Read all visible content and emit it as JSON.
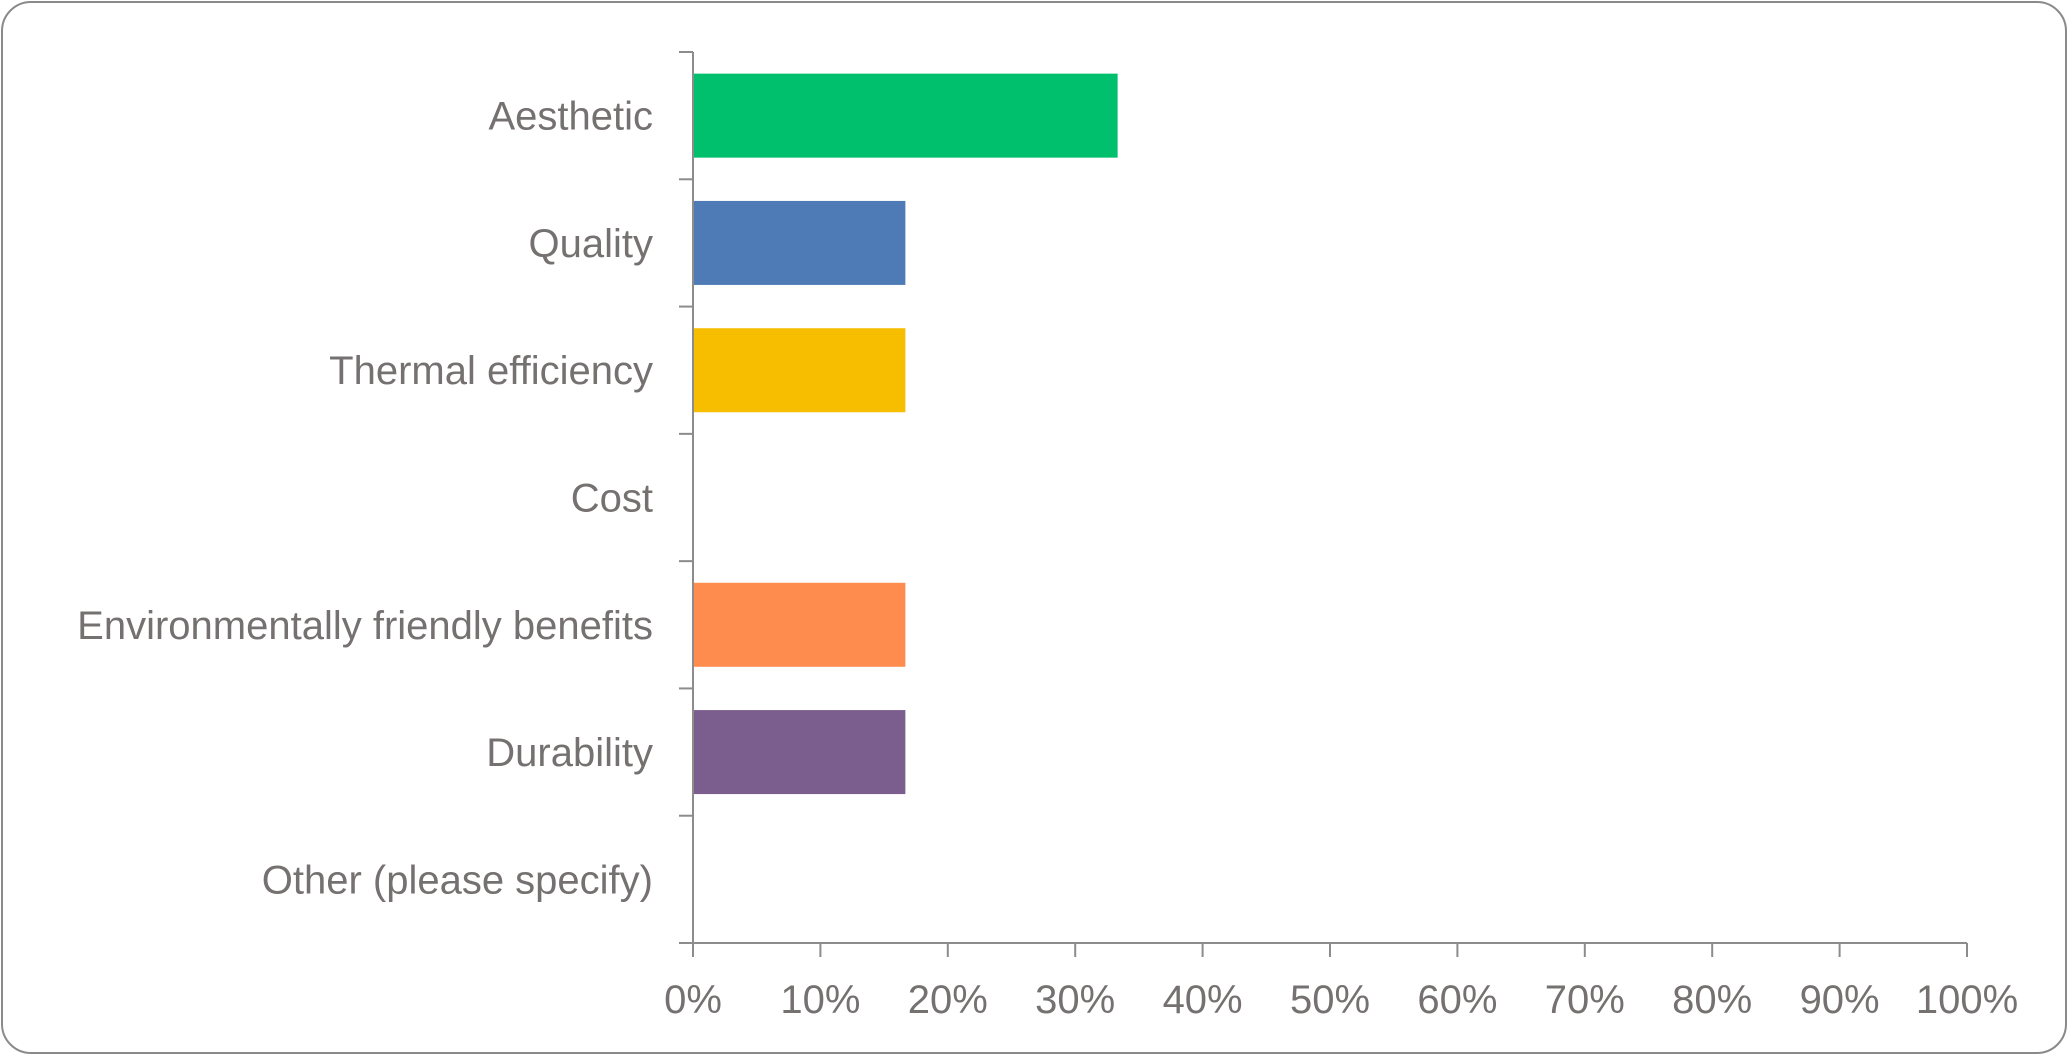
{
  "chart_data": {
    "type": "bar",
    "orientation": "horizontal",
    "categories": [
      "Aesthetic",
      "Quality",
      "Thermal efficiency",
      "Cost",
      "Environmentally friendly benefits",
      "Durability",
      "Other (please specify)"
    ],
    "values": [
      33.33,
      16.67,
      16.67,
      0,
      16.67,
      16.67,
      0
    ],
    "colors": [
      "#00c06e",
      "#4e7ab5",
      "#f7be00",
      "#f7be00",
      "#ff8c4f",
      "#7b5d8e",
      "#7b5d8e"
    ],
    "xlim": [
      0,
      100
    ],
    "xticks": [
      0,
      10,
      20,
      30,
      40,
      50,
      60,
      70,
      80,
      90,
      100
    ],
    "xtick_labels": [
      "0%",
      "10%",
      "20%",
      "30%",
      "40%",
      "50%",
      "60%",
      "70%",
      "80%",
      "90%",
      "100%"
    ],
    "grid": false,
    "legend": "none"
  }
}
